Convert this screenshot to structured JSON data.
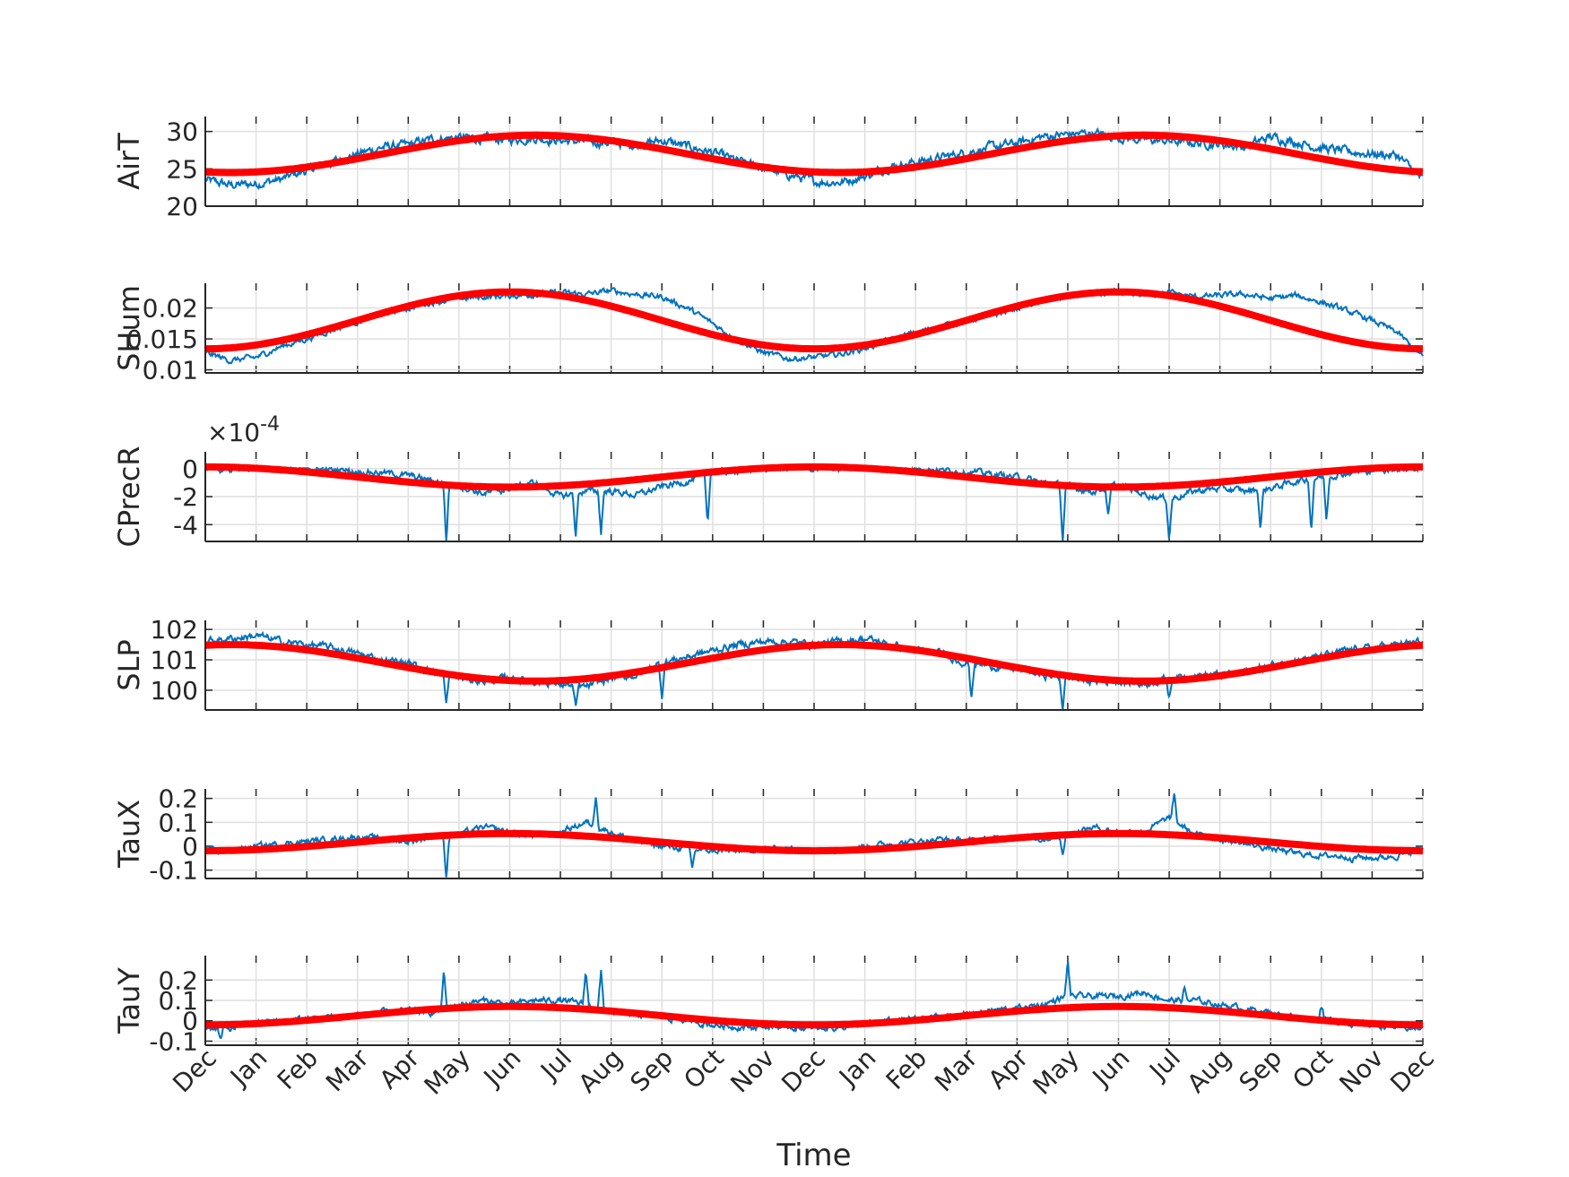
{
  "chart_data": {
    "type": "line",
    "xlabel": "Time",
    "x_ticks": [
      "Dec",
      "Jan",
      "Feb",
      "Mar",
      "Apr",
      "May",
      "Jun",
      "Jul",
      "Aug",
      "Sep",
      "Oct",
      "Nov",
      "Dec",
      "Jan",
      "Feb",
      "Mar",
      "Apr",
      "May",
      "Jun",
      "Jul",
      "Aug",
      "Sep",
      "Oct",
      "Nov",
      "Dec"
    ],
    "x_range_months": [
      0,
      24
    ],
    "grid": true,
    "colors": {
      "observed": "#0072BD",
      "fit": "#FF0000",
      "axis": "#262626",
      "grid": "#DFDFDF"
    },
    "panels": [
      {
        "ylabel": "AirT",
        "ylim": [
          20,
          32
        ],
        "yticks": [
          20,
          25,
          30
        ],
        "ytick_labels": [
          "20",
          "25",
          "30"
        ],
        "fit": {
          "mean": 27.0,
          "amplitude": 2.5,
          "peak_month": 6.5
        },
        "observed": {
          "months": [
            0,
            0.5,
            1,
            1.5,
            2,
            2.5,
            3,
            3.5,
            4,
            4.5,
            5,
            5.5,
            6,
            6.5,
            7,
            7.5,
            8,
            8.5,
            9,
            9.5,
            10,
            10.5,
            11,
            11.5,
            12,
            12.5,
            13,
            13.5,
            14,
            14.5,
            15,
            15.5,
            16,
            16.5,
            17,
            17.5,
            18,
            18.5,
            19,
            19.5,
            20,
            20.5,
            21,
            21.5,
            22,
            22.5,
            23,
            23.5,
            24
          ],
          "values": [
            23.5,
            22.8,
            23.0,
            23.6,
            24.8,
            25.9,
            27.0,
            27.9,
            28.2,
            29.0,
            29.2,
            29.0,
            28.9,
            29.1,
            28.8,
            28.6,
            28.5,
            28.2,
            28.8,
            28.0,
            27.2,
            26.0,
            25.1,
            24.2,
            23.3,
            23.2,
            24.0,
            25.3,
            25.9,
            26.5,
            27.2,
            27.9,
            28.4,
            29.3,
            29.6,
            29.8,
            29.2,
            28.9,
            28.7,
            28.5,
            28.3,
            28.0,
            29.3,
            28.6,
            27.8,
            27.3,
            27.0,
            26.8,
            23.5
          ]
        },
        "noise": 0.9
      },
      {
        "ylabel": "SHum",
        "ylim": [
          0.0095,
          0.024
        ],
        "yticks": [
          0.01,
          0.015,
          0.02
        ],
        "ytick_labels": [
          "0.01",
          "0.015",
          "0.02"
        ],
        "fit": {
          "mean": 0.018,
          "amplitude": 0.0046,
          "peak_month": 6.0
        },
        "observed": {
          "months": [
            0,
            0.5,
            1,
            1.5,
            2,
            2.5,
            3,
            3.5,
            4,
            4.5,
            5,
            5.5,
            6,
            6.5,
            7,
            7.5,
            8,
            8.5,
            9,
            9.5,
            10,
            10.5,
            11,
            11.5,
            12,
            12.5,
            13,
            13.5,
            14,
            14.5,
            15,
            15.5,
            16,
            16.5,
            17,
            17.5,
            18,
            18.5,
            19,
            19.5,
            20,
            20.5,
            21,
            21.5,
            22,
            22.5,
            23,
            23.5,
            24
          ],
          "values": [
            0.0128,
            0.0115,
            0.012,
            0.0138,
            0.015,
            0.0165,
            0.0178,
            0.0192,
            0.02,
            0.021,
            0.0215,
            0.0218,
            0.022,
            0.0222,
            0.0225,
            0.0222,
            0.0228,
            0.0222,
            0.0218,
            0.02,
            0.0175,
            0.0148,
            0.0128,
            0.0118,
            0.012,
            0.0125,
            0.0135,
            0.0148,
            0.016,
            0.017,
            0.018,
            0.0188,
            0.02,
            0.0212,
            0.0218,
            0.0222,
            0.0225,
            0.0222,
            0.0225,
            0.0218,
            0.022,
            0.0222,
            0.0215,
            0.022,
            0.021,
            0.0195,
            0.018,
            0.016,
            0.012
          ]
        },
        "noise": 0.0007
      },
      {
        "ylabel": "CPrecR",
        "ylim": [
          -5.2,
          1.2
        ],
        "yticks": [
          -4,
          -2,
          0
        ],
        "ytick_labels": [
          "-4",
          "-2",
          "0"
        ],
        "exponent_label": "×10",
        "exponent_sup": "-4",
        "fit": {
          "mean": -0.6,
          "amplitude": 0.72,
          "peak_month": 0.0
        },
        "observed": {
          "months": [
            0,
            0.5,
            1,
            1.5,
            2,
            2.5,
            3,
            3.5,
            4,
            4.5,
            5,
            5.5,
            6,
            6.5,
            7,
            7.5,
            8,
            8.5,
            9,
            9.5,
            10,
            10.5,
            11,
            11.5,
            12,
            12.5,
            13,
            13.5,
            14,
            14.5,
            15,
            15.5,
            16,
            16.5,
            17,
            17.5,
            18,
            18.5,
            19,
            19.5,
            20,
            20.5,
            21,
            21.5,
            22,
            22.5,
            23,
            23.5,
            24
          ],
          "values": [
            0,
            0,
            0,
            0,
            0,
            -0.1,
            -0.2,
            -0.3,
            -0.5,
            -0.9,
            -1.2,
            -1.8,
            -1.4,
            -1.0,
            -2.0,
            -1.6,
            -1.6,
            -1.9,
            -1.3,
            -0.9,
            -0.3,
            -0.1,
            0,
            0,
            0,
            0,
            0,
            0,
            0,
            -0.1,
            -0.2,
            -0.4,
            -0.6,
            -1.0,
            -1.3,
            -1.6,
            -1.2,
            -1.8,
            -2.2,
            -1.6,
            -1.4,
            -1.6,
            -1.4,
            -0.9,
            -0.6,
            -0.3,
            -0.1,
            0,
            0
          ]
        },
        "noise": 0.35,
        "spikes": [
          [
            4.75,
            -5.2
          ],
          [
            7.3,
            -4.8
          ],
          [
            7.8,
            -4.6
          ],
          [
            9.9,
            -4.0
          ],
          [
            16.9,
            -5.2
          ],
          [
            19.0,
            -5.1
          ],
          [
            20.8,
            -4.4
          ],
          [
            22.1,
            -3.8
          ],
          [
            17.8,
            -3.6
          ],
          [
            21.8,
            -4.5
          ]
        ]
      },
      {
        "ylabel": "SLP",
        "ylim": [
          99.35,
          102.3
        ],
        "yticks": [
          100,
          101,
          102
        ],
        "ytick_labels": [
          "100",
          "101",
          "102"
        ],
        "fit": {
          "mean": 100.9,
          "amplitude": 0.6,
          "peak_month": 0.5
        },
        "observed": {
          "months": [
            0,
            0.5,
            1,
            1.5,
            2,
            2.5,
            3,
            3.5,
            4,
            4.5,
            5,
            5.5,
            6,
            6.5,
            7,
            7.5,
            8,
            8.5,
            9,
            9.5,
            10,
            10.5,
            11,
            11.5,
            12,
            12.5,
            13,
            13.5,
            14,
            14.5,
            15,
            15.5,
            16,
            16.5,
            17,
            17.5,
            18,
            18.5,
            19,
            19.5,
            20,
            20.5,
            21,
            21.5,
            22,
            22.5,
            23,
            23.5,
            24
          ],
          "values": [
            101.6,
            101.7,
            101.8,
            101.6,
            101.5,
            101.4,
            101.2,
            101.0,
            100.9,
            100.6,
            100.4,
            100.3,
            100.4,
            100.3,
            100.2,
            100.1,
            100.4,
            100.5,
            100.9,
            101.1,
            101.3,
            101.5,
            101.6,
            101.6,
            101.5,
            101.6,
            101.7,
            101.5,
            101.3,
            101.2,
            100.9,
            100.8,
            100.7,
            100.5,
            100.4,
            100.3,
            100.3,
            100.2,
            100.4,
            100.5,
            100.5,
            100.6,
            100.8,
            101.0,
            101.1,
            101.3,
            101.4,
            101.5,
            101.6
          ]
        },
        "noise": 0.18,
        "spikes": [
          [
            4.75,
            99.45
          ],
          [
            7.3,
            99.35
          ],
          [
            9.0,
            99.8
          ],
          [
            16.9,
            99.4
          ],
          [
            15.1,
            99.75
          ],
          [
            19.0,
            99.7
          ]
        ]
      },
      {
        "ylabel": "TauX",
        "ylim": [
          -0.135,
          0.24
        ],
        "yticks": [
          -0.1,
          0,
          0.1,
          0.2
        ],
        "ytick_labels": [
          "-0.1",
          "0",
          "0.1",
          "0.2"
        ],
        "fit": {
          "mean": 0.017,
          "amplitude": 0.036,
          "peak_month": 6.0
        },
        "observed": {
          "months": [
            0,
            0.5,
            1,
            1.5,
            2,
            2.5,
            3,
            3.5,
            4,
            4.5,
            5,
            5.5,
            6,
            6.5,
            7,
            7.5,
            8,
            8.5,
            9,
            9.5,
            10,
            10.5,
            11,
            11.5,
            12,
            12.5,
            13,
            13.5,
            14,
            14.5,
            15,
            15.5,
            16,
            16.5,
            17,
            17.5,
            18,
            18.5,
            19,
            19.5,
            20,
            20.5,
            21,
            21.5,
            22,
            22.5,
            23,
            23.5,
            24
          ],
          "values": [
            -0.02,
            -0.02,
            0,
            0.01,
            0.02,
            0.03,
            0.04,
            0.03,
            0.02,
            0.04,
            0.05,
            0.08,
            0.06,
            0.04,
            0.06,
            0.1,
            0.06,
            0.02,
            0,
            -0.01,
            -0.02,
            -0.02,
            -0.01,
            -0.01,
            -0.02,
            -0.01,
            0,
            0.01,
            0.02,
            0.03,
            0.02,
            0.03,
            0.04,
            0.03,
            0.05,
            0.08,
            0.06,
            0.06,
            0.12,
            0.05,
            0.03,
            0.01,
            -0.01,
            -0.03,
            -0.04,
            -0.04,
            -0.05,
            -0.04,
            -0.01
          ]
        },
        "noise": 0.018,
        "spikes": [
          [
            4.75,
            -0.13
          ],
          [
            7.7,
            0.22
          ],
          [
            9.6,
            -0.09
          ],
          [
            16.9,
            -0.05
          ],
          [
            19.1,
            0.22
          ],
          [
            22.6,
            -0.07
          ]
        ]
      },
      {
        "ylabel": "TauY",
        "ylim": [
          -0.12,
          0.32
        ],
        "yticks": [
          -0.1,
          0,
          0.1,
          0.2
        ],
        "ytick_labels": [
          "-0.1",
          "0",
          "0.1",
          "0.2"
        ],
        "fit": {
          "mean": 0.025,
          "amplitude": 0.045,
          "peak_month": 6.0
        },
        "observed": {
          "months": [
            0,
            0.5,
            1,
            1.5,
            2,
            2.5,
            3,
            3.5,
            4,
            4.5,
            5,
            5.5,
            6,
            6.5,
            7,
            7.5,
            8,
            8.5,
            9,
            9.5,
            10,
            10.5,
            11,
            11.5,
            12,
            12.5,
            13,
            13.5,
            14,
            14.5,
            15,
            15.5,
            16,
            16.5,
            17,
            17.5,
            18,
            18.5,
            19,
            19.5,
            20,
            20.5,
            21,
            21.5,
            22,
            22.5,
            23,
            23.5,
            24
          ],
          "values": [
            -0.03,
            -0.04,
            -0.01,
            0,
            0.01,
            0.02,
            0.03,
            0.04,
            0.05,
            0.04,
            0.08,
            0.1,
            0.08,
            0.1,
            0.1,
            0.08,
            0.04,
            0.03,
            0.02,
            0.0,
            -0.02,
            -0.03,
            -0.03,
            -0.03,
            -0.04,
            -0.03,
            -0.02,
            0,
            0.01,
            0.02,
            0.03,
            0.05,
            0.06,
            0.08,
            0.12,
            0.12,
            0.12,
            0.14,
            0.1,
            0.1,
            0.08,
            0.06,
            0.04,
            0.02,
            0.01,
            -0.01,
            -0.02,
            -0.03,
            -0.04
          ]
        },
        "noise": 0.022,
        "spikes": [
          [
            4.7,
            0.24
          ],
          [
            7.5,
            0.25
          ],
          [
            7.8,
            0.24
          ],
          [
            17.0,
            0.3
          ],
          [
            19.3,
            0.16
          ],
          [
            22.0,
            0.08
          ],
          [
            0.3,
            -0.1
          ]
        ]
      }
    ]
  }
}
